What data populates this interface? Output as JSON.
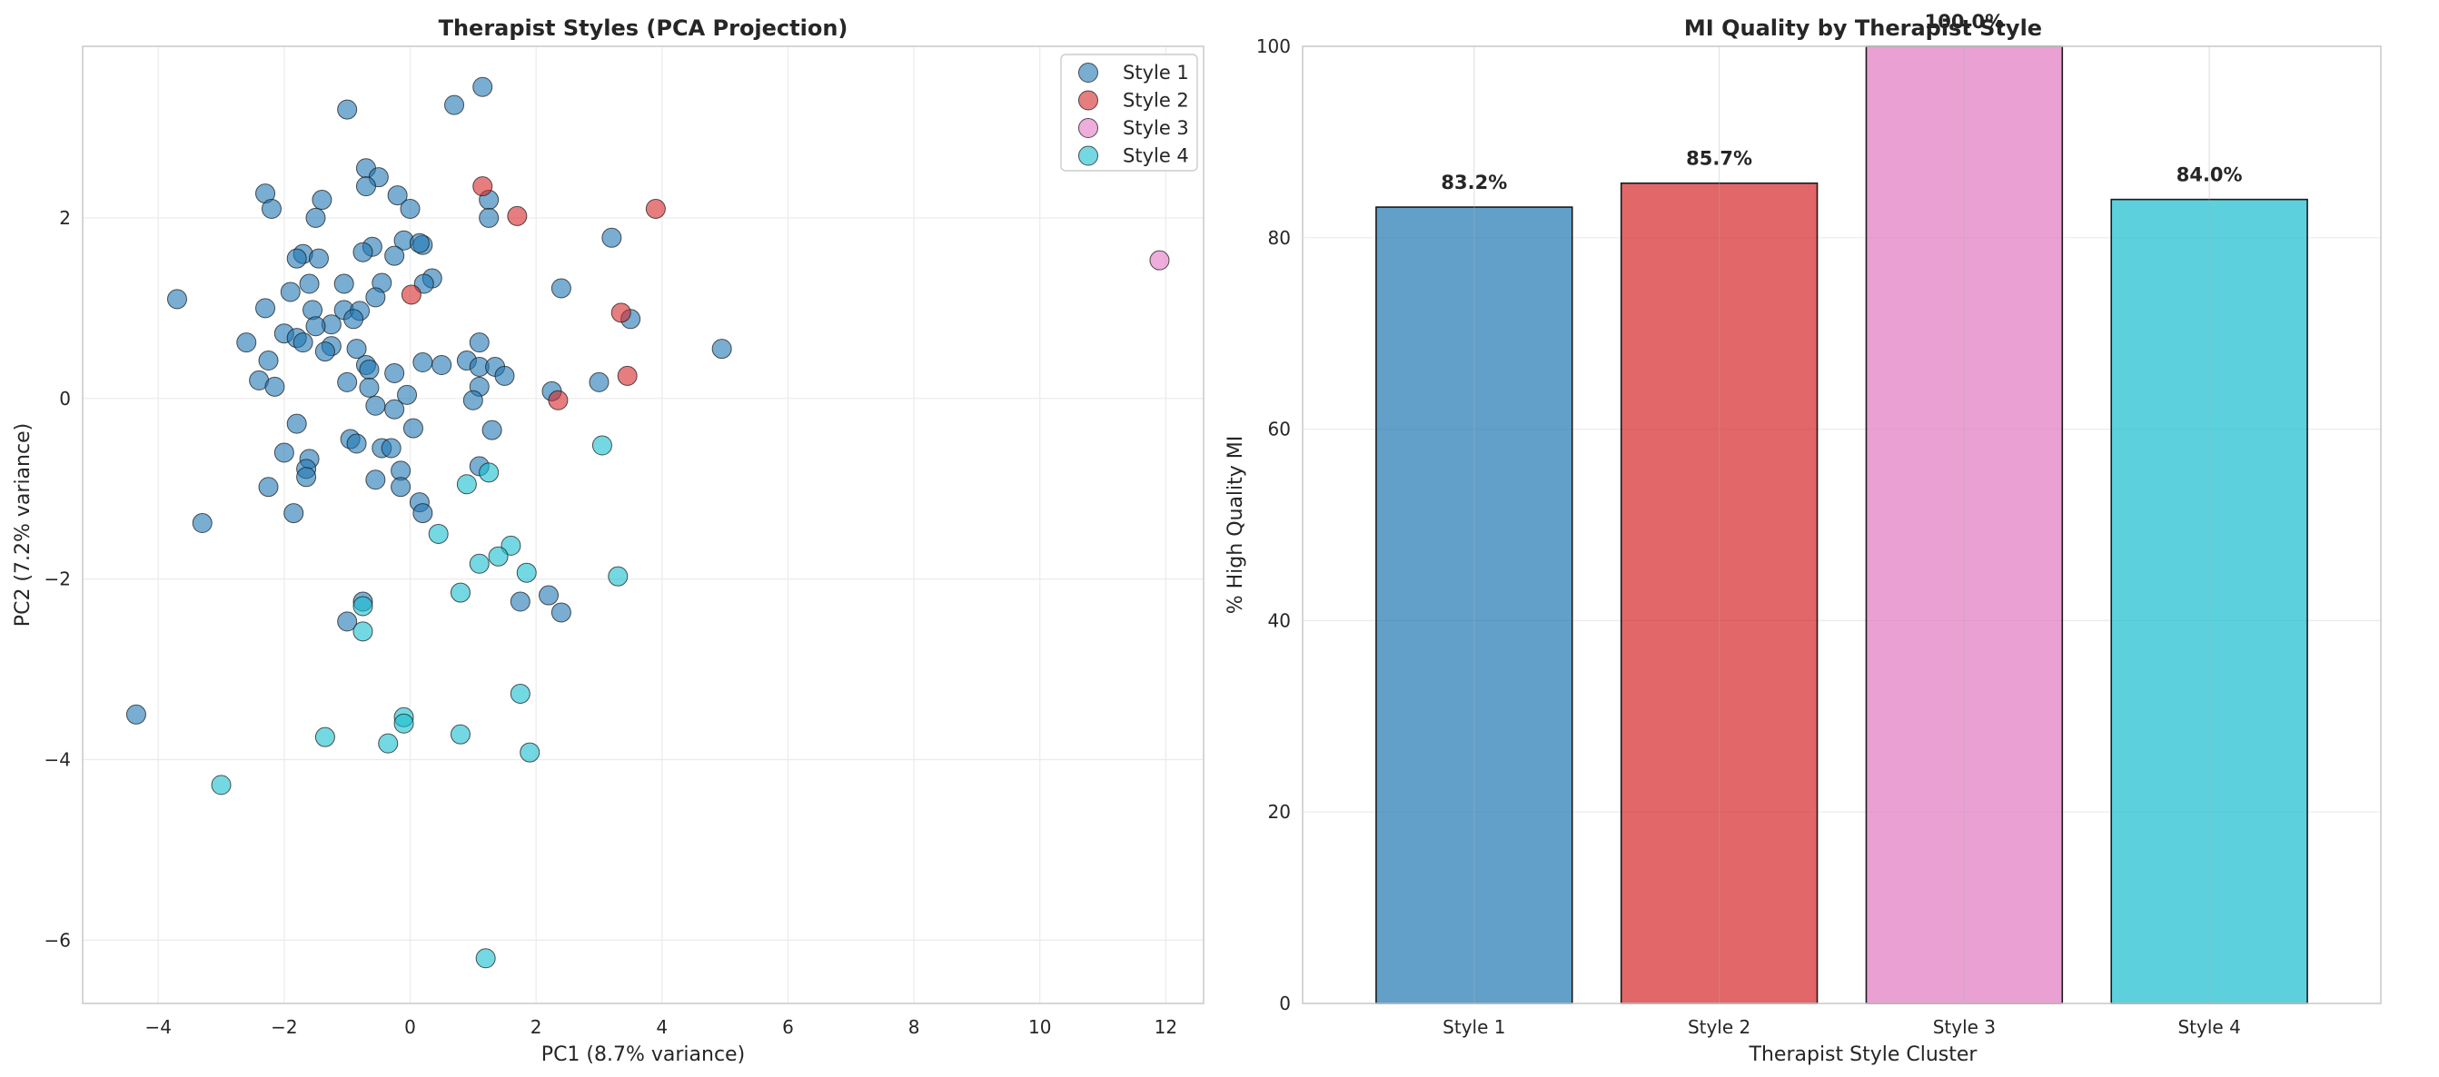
{
  "chart_data": [
    {
      "type": "scatter",
      "title": "Therapist Styles (PCA Projection)",
      "xlabel": "PC1 (8.7% variance)",
      "ylabel": "PC2 (7.2% variance)",
      "xlim": [
        -5.2,
        12.6
      ],
      "ylim": [
        -6.7,
        3.9
      ],
      "xticks": [
        -4,
        -2,
        0,
        2,
        4,
        6,
        8,
        10,
        12
      ],
      "yticks": [
        -6,
        -4,
        -2,
        0,
        2
      ],
      "grid": true,
      "legend": "top-right",
      "series": [
        {
          "name": "Style 1",
          "color": "#1f77b4",
          "points": [
            [
              -1.0,
              3.2
            ],
            [
              1.15,
              3.45
            ],
            [
              0.7,
              3.25
            ],
            [
              -0.7,
              2.55
            ],
            [
              -0.5,
              2.45
            ],
            [
              -0.7,
              2.35
            ],
            [
              -2.3,
              2.27
            ],
            [
              -1.4,
              2.2
            ],
            [
              -0.2,
              2.25
            ],
            [
              -2.2,
              2.1
            ],
            [
              -1.5,
              2.0
            ],
            [
              0.0,
              2.1
            ],
            [
              1.25,
              2.2
            ],
            [
              1.25,
              2.0
            ],
            [
              3.2,
              1.78
            ],
            [
              -0.1,
              1.75
            ],
            [
              0.2,
              1.7
            ],
            [
              0.15,
              1.72
            ],
            [
              -0.6,
              1.68
            ],
            [
              -0.75,
              1.62
            ],
            [
              -0.25,
              1.58
            ],
            [
              -1.7,
              1.6
            ],
            [
              -1.8,
              1.55
            ],
            [
              -1.45,
              1.55
            ],
            [
              0.35,
              1.33
            ],
            [
              0.22,
              1.27
            ],
            [
              -0.45,
              1.28
            ],
            [
              -1.6,
              1.27
            ],
            [
              -1.05,
              1.27
            ],
            [
              -1.9,
              1.18
            ],
            [
              -0.55,
              1.12
            ],
            [
              2.4,
              1.22
            ],
            [
              -3.7,
              1.1
            ],
            [
              -2.3,
              1.0
            ],
            [
              -1.55,
              0.98
            ],
            [
              -1.05,
              0.98
            ],
            [
              -0.8,
              0.97
            ],
            [
              -0.9,
              0.88
            ],
            [
              -1.25,
              0.82
            ],
            [
              -1.5,
              0.8
            ],
            [
              3.5,
              0.88
            ],
            [
              -2.0,
              0.72
            ],
            [
              -1.8,
              0.67
            ],
            [
              -1.7,
              0.62
            ],
            [
              -2.6,
              0.62
            ],
            [
              1.1,
              0.62
            ],
            [
              -1.25,
              0.58
            ],
            [
              -0.85,
              0.55
            ],
            [
              -1.35,
              0.52
            ],
            [
              4.95,
              0.55
            ],
            [
              -2.25,
              0.42
            ],
            [
              0.9,
              0.42
            ],
            [
              0.2,
              0.4
            ],
            [
              0.5,
              0.37
            ],
            [
              -0.7,
              0.37
            ],
            [
              1.1,
              0.35
            ],
            [
              1.35,
              0.35
            ],
            [
              -0.65,
              0.32
            ],
            [
              -0.25,
              0.28
            ],
            [
              1.5,
              0.25
            ],
            [
              -2.4,
              0.2
            ],
            [
              -1.0,
              0.18
            ],
            [
              3.0,
              0.18
            ],
            [
              -2.15,
              0.13
            ],
            [
              1.1,
              0.13
            ],
            [
              -0.65,
              0.12
            ],
            [
              2.25,
              0.08
            ],
            [
              -0.05,
              0.04
            ],
            [
              1.0,
              -0.02
            ],
            [
              -0.55,
              -0.08
            ],
            [
              -0.25,
              -0.12
            ],
            [
              -1.8,
              -0.28
            ],
            [
              0.05,
              -0.33
            ],
            [
              1.3,
              -0.35
            ],
            [
              -0.95,
              -0.45
            ],
            [
              -0.85,
              -0.5
            ],
            [
              -0.45,
              -0.55
            ],
            [
              -0.3,
              -0.55
            ],
            [
              -2.0,
              -0.6
            ],
            [
              -1.6,
              -0.67
            ],
            [
              -1.65,
              -0.78
            ],
            [
              -0.15,
              -0.8
            ],
            [
              1.1,
              -0.75
            ],
            [
              -1.65,
              -0.87
            ],
            [
              -0.55,
              -0.9
            ],
            [
              -2.25,
              -0.98
            ],
            [
              -0.15,
              -0.98
            ],
            [
              0.15,
              -1.15
            ],
            [
              0.2,
              -1.27
            ],
            [
              -1.85,
              -1.27
            ],
            [
              -3.3,
              -1.38
            ],
            [
              2.2,
              -2.18
            ],
            [
              1.75,
              -2.25
            ],
            [
              -0.75,
              -2.25
            ],
            [
              2.4,
              -2.37
            ],
            [
              -1.0,
              -2.47
            ],
            [
              -4.35,
              -3.5
            ]
          ]
        },
        {
          "name": "Style 2",
          "color": "#d62728",
          "points": [
            [
              1.15,
              2.35
            ],
            [
              1.7,
              2.02
            ],
            [
              3.9,
              2.1
            ],
            [
              0.02,
              1.15
            ],
            [
              3.35,
              0.95
            ],
            [
              3.45,
              0.25
            ],
            [
              2.35,
              -0.02
            ]
          ]
        },
        {
          "name": "Style 3",
          "color": "#e377c2",
          "points": [
            [
              11.9,
              1.53
            ]
          ]
        },
        {
          "name": "Style 4",
          "color": "#17becf",
          "points": [
            [
              3.05,
              -0.52
            ],
            [
              0.9,
              -0.95
            ],
            [
              1.25,
              -0.82
            ],
            [
              0.45,
              -1.5
            ],
            [
              1.6,
              -1.63
            ],
            [
              1.4,
              -1.75
            ],
            [
              1.1,
              -1.83
            ],
            [
              1.85,
              -1.93
            ],
            [
              3.3,
              -1.97
            ],
            [
              0.8,
              -2.15
            ],
            [
              -0.75,
              -2.3
            ],
            [
              -0.75,
              -2.58
            ],
            [
              1.75,
              -3.27
            ],
            [
              -0.1,
              -3.53
            ],
            [
              -0.1,
              -3.6
            ],
            [
              0.8,
              -3.72
            ],
            [
              -1.35,
              -3.75
            ],
            [
              -0.35,
              -3.82
            ],
            [
              1.9,
              -3.92
            ],
            [
              -3.0,
              -4.28
            ],
            [
              1.2,
              -6.2
            ]
          ]
        }
      ]
    },
    {
      "type": "bar",
      "title": "MI Quality by Therapist Style",
      "xlabel": "Therapist Style Cluster",
      "ylabel": "% High Quality MI",
      "categories": [
        "Style 1",
        "Style 2",
        "Style 3",
        "Style 4"
      ],
      "values": [
        83.2,
        85.7,
        100.0,
        84.0
      ],
      "value_labels": [
        "83.2%",
        "85.7%",
        "100.0%",
        "84.0%"
      ],
      "colors": [
        "#1f77b4",
        "#d62728",
        "#e377c2",
        "#17becf"
      ],
      "ylim": [
        0,
        100
      ],
      "yticks": [
        0,
        20,
        40,
        60,
        80,
        100
      ],
      "grid": true
    }
  ]
}
